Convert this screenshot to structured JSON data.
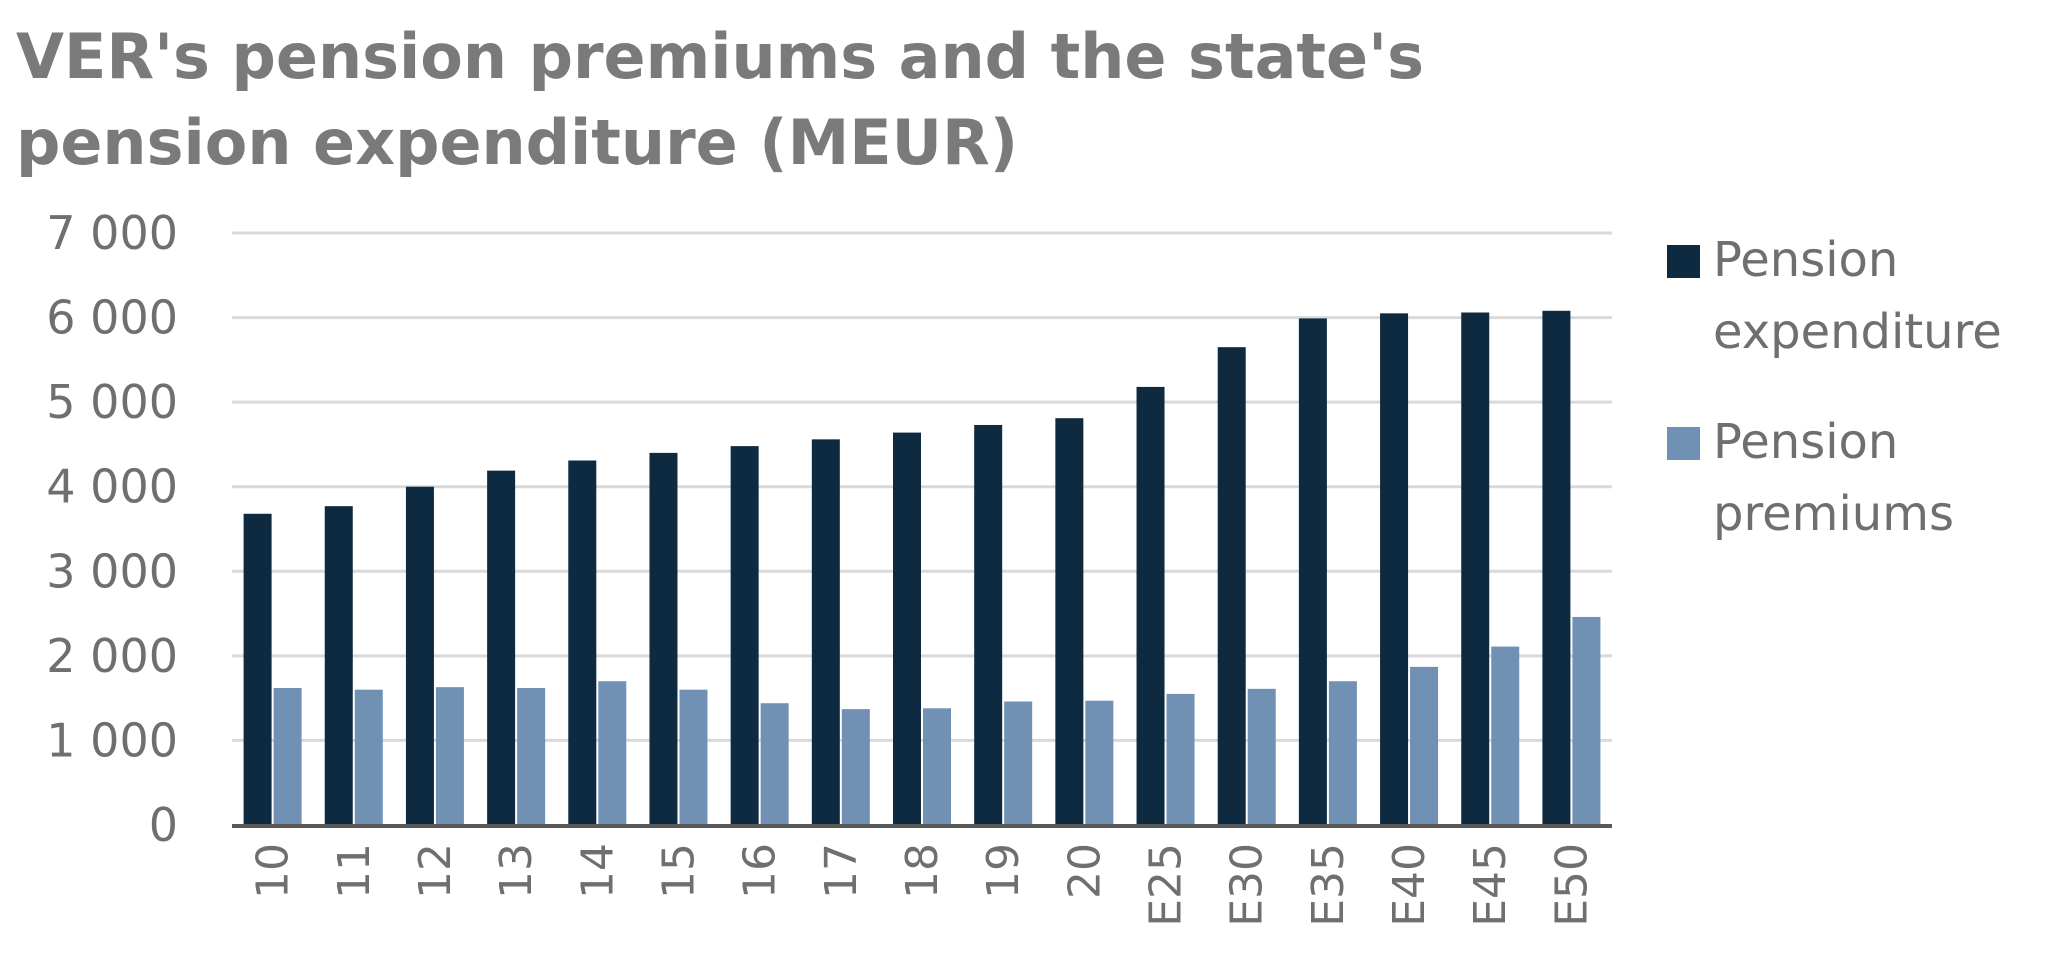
{
  "chart_data": {
    "type": "bar",
    "title": "VER's pension premiums and the state's pension expenditure (MEUR)",
    "categories": [
      "10",
      "11",
      "12",
      "13",
      "14",
      "15",
      "16",
      "17",
      "18",
      "19",
      "20",
      "E25",
      "E30",
      "E35",
      "E40",
      "E45",
      "E50"
    ],
    "series": [
      {
        "name": "Pension expenditure",
        "color": "#0e2a40",
        "values": [
          3680,
          3770,
          4000,
          4190,
          4310,
          4400,
          4480,
          4560,
          4640,
          4730,
          4810,
          5180,
          5650,
          5990,
          6050,
          6060,
          6080
        ]
      },
      {
        "name": "Pension premiums",
        "color": "#7191b4",
        "values": [
          1620,
          1600,
          1630,
          1620,
          1700,
          1600,
          1440,
          1370,
          1380,
          1460,
          1470,
          1550,
          1610,
          1700,
          1870,
          2110,
          2460
        ]
      }
    ],
    "yticks": [
      "0",
      "1 000",
      "2 000",
      "3 000",
      "4 000",
      "5 000",
      "6 000",
      "7 000"
    ],
    "ylim": [
      0,
      7000
    ],
    "grid": true,
    "legend": "right"
  }
}
